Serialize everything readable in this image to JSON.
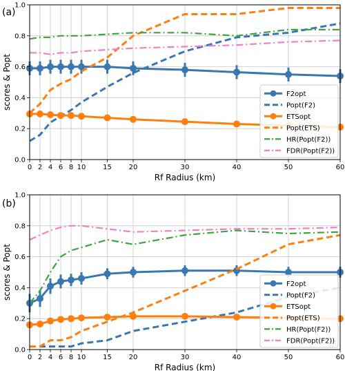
{
  "colors": {
    "blue": "#3a77b0",
    "orange": "#ff7f0e",
    "green": "#3ea43e",
    "pink": "#f07fc4",
    "grid": "#c8c8c8"
  },
  "chart_data": [
    {
      "type": "line",
      "panel_label": "(a)",
      "xlabel": "Rf Radius (km)",
      "ylabel": "scores & Popt",
      "xlim": [
        0,
        60
      ],
      "ylim": [
        0.0,
        1.0
      ],
      "xticks": [
        0,
        2,
        4,
        6,
        8,
        10,
        15,
        20,
        30,
        40,
        50,
        60
      ],
      "xtick_labels": [
        "0",
        "2",
        "4",
        "6",
        "8",
        "10",
        "15",
        "20",
        "30",
        "40",
        "50",
        "60"
      ],
      "yticks": [
        0.0,
        0.2,
        0.4,
        0.6,
        0.8,
        1.0
      ],
      "ytick_labels": [
        "0.0",
        "0.2",
        "0.4",
        "0.6",
        "0.8",
        "1.0"
      ],
      "grid": true,
      "legend": "lower-right",
      "x": [
        0,
        2,
        4,
        6,
        8,
        10,
        15,
        20,
        30,
        40,
        50,
        60
      ],
      "series": [
        {
          "name": "F2opt",
          "color": "blue",
          "style": "solid-marker",
          "values": [
            0.59,
            0.59,
            0.6,
            0.6,
            0.6,
            0.6,
            0.6,
            0.59,
            0.58,
            0.565,
            0.55,
            0.54
          ],
          "errors": [
            0.045,
            0.045,
            0.045,
            0.045,
            0.045,
            0.045,
            0.045,
            0.045,
            0.045,
            0.045,
            0.045,
            0.045
          ]
        },
        {
          "name": "Popt(F2)",
          "color": "blue",
          "style": "dashed",
          "values": [
            0.12,
            0.16,
            0.24,
            0.28,
            0.32,
            0.37,
            0.47,
            0.56,
            0.7,
            0.79,
            0.82,
            0.88
          ]
        },
        {
          "name": "ETSopt",
          "color": "orange",
          "style": "solid-marker",
          "values": [
            0.295,
            0.295,
            0.29,
            0.285,
            0.285,
            0.28,
            0.27,
            0.26,
            0.245,
            0.23,
            0.22,
            0.21
          ],
          "errors": [
            0.015,
            0.015,
            0.015,
            0.015,
            0.015,
            0.015,
            0.015,
            0.015,
            0.015,
            0.015,
            0.015,
            0.015
          ]
        },
        {
          "name": "Popt(ETS)",
          "color": "orange",
          "style": "dashed",
          "values": [
            0.3,
            0.36,
            0.45,
            0.49,
            0.52,
            0.57,
            0.66,
            0.8,
            0.94,
            0.94,
            0.98,
            0.98
          ]
        },
        {
          "name": "HR(Popt(F2))",
          "color": "green",
          "style": "dashdot",
          "values": [
            0.78,
            0.79,
            0.79,
            0.8,
            0.8,
            0.8,
            0.81,
            0.82,
            0.82,
            0.8,
            0.84,
            0.84
          ]
        },
        {
          "name": "FDR(Popt(F2))",
          "color": "pink",
          "style": "dashdot",
          "values": [
            0.69,
            0.69,
            0.68,
            0.69,
            0.69,
            0.7,
            0.71,
            0.72,
            0.73,
            0.74,
            0.76,
            0.77
          ]
        }
      ]
    },
    {
      "type": "line",
      "panel_label": "(b)",
      "xlabel": "Rf Radius (km)",
      "ylabel": "scores & Popt",
      "xlim": [
        0,
        60
      ],
      "ylim": [
        0.0,
        1.0
      ],
      "xticks": [
        0,
        2,
        4,
        6,
        8,
        10,
        15,
        20,
        30,
        40,
        50,
        60
      ],
      "xtick_labels": [
        "0",
        "2",
        "4",
        "6",
        "8",
        "10",
        "15",
        "20",
        "30",
        "40",
        "50",
        "60"
      ],
      "yticks": [
        0.0,
        0.2,
        0.4,
        0.6,
        0.8,
        1.0
      ],
      "ytick_labels": [
        "0.0",
        "0.2",
        "0.4",
        "0.6",
        "0.8",
        "1.0"
      ],
      "grid": true,
      "legend": "lower-right",
      "x": [
        0,
        2,
        4,
        6,
        8,
        10,
        15,
        20,
        30,
        40,
        50,
        60
      ],
      "series": [
        {
          "name": "F2opt",
          "color": "blue",
          "style": "solid-marker",
          "values": [
            0.3,
            0.33,
            0.41,
            0.44,
            0.45,
            0.46,
            0.49,
            0.5,
            0.51,
            0.51,
            0.5,
            0.5
          ],
          "errors": [
            0.06,
            0.055,
            0.05,
            0.045,
            0.04,
            0.04,
            0.035,
            0.035,
            0.035,
            0.035,
            0.035,
            0.035
          ]
        },
        {
          "name": "Popt(F2)",
          "color": "blue",
          "style": "dashed",
          "values": [
            0.02,
            0.02,
            0.02,
            0.02,
            0.02,
            0.04,
            0.06,
            0.12,
            0.18,
            0.24,
            0.34,
            0.4
          ]
        },
        {
          "name": "ETSopt",
          "color": "orange",
          "style": "solid-marker",
          "values": [
            0.16,
            0.165,
            0.185,
            0.195,
            0.2,
            0.205,
            0.21,
            0.215,
            0.215,
            0.21,
            0.205,
            0.2
          ],
          "errors": [
            0.015,
            0.015,
            0.015,
            0.015,
            0.015,
            0.015,
            0.015,
            0.015,
            0.015,
            0.015,
            0.015,
            0.015
          ]
        },
        {
          "name": "Popt(ETS)",
          "color": "orange",
          "style": "dashed",
          "values": [
            0.02,
            0.02,
            0.06,
            0.06,
            0.08,
            0.12,
            0.18,
            0.24,
            0.38,
            0.52,
            0.68,
            0.74
          ]
        },
        {
          "name": "HR(Popt(F2))",
          "color": "green",
          "style": "dashdot",
          "values": [
            0.3,
            0.38,
            0.5,
            0.6,
            0.64,
            0.66,
            0.71,
            0.68,
            0.74,
            0.77,
            0.75,
            0.76
          ]
        },
        {
          "name": "FDR(Popt(F2))",
          "color": "pink",
          "style": "dashdot",
          "values": [
            0.71,
            0.74,
            0.77,
            0.79,
            0.8,
            0.8,
            0.78,
            0.76,
            0.77,
            0.78,
            0.78,
            0.79
          ]
        }
      ]
    }
  ]
}
